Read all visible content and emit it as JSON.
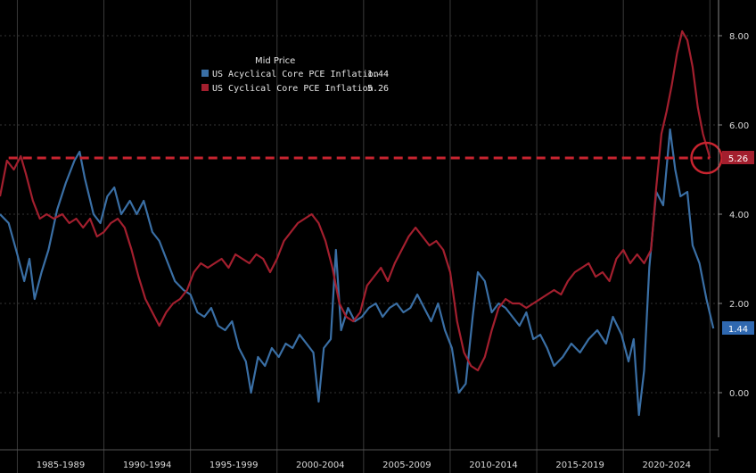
{
  "chart_data": {
    "type": "line",
    "title": "",
    "xlabel": "",
    "ylabel": "",
    "xlim": [
      1984,
      2025.5
    ],
    "ylim": [
      -1.0,
      8.8
    ],
    "y_ticks": [
      0,
      2,
      4,
      6,
      8
    ],
    "y_tick_labels": [
      "0.00",
      "2.00",
      "4.00",
      "6.00",
      "8.00"
    ],
    "x_periods": [
      "1985-1989",
      "1990-1994",
      "1995-1999",
      "2000-2004",
      "2005-2009",
      "2010-2014",
      "2015-2019",
      "2020-2024"
    ],
    "grid": true,
    "legend_title": "Mid Price",
    "legend_position": "top-left",
    "series": [
      {
        "name": "US Acyclical Core PCE Inflation",
        "last_label": "1.44",
        "color": "#3a6fa5",
        "points": [
          [
            1984.0,
            4.0
          ],
          [
            1984.5,
            3.8
          ],
          [
            1985.0,
            3.1
          ],
          [
            1985.4,
            2.5
          ],
          [
            1985.7,
            3.0
          ],
          [
            1986.0,
            2.1
          ],
          [
            1986.4,
            2.7
          ],
          [
            1986.8,
            3.2
          ],
          [
            1987.3,
            4.1
          ],
          [
            1987.8,
            4.7
          ],
          [
            1988.3,
            5.2
          ],
          [
            1988.6,
            5.4
          ],
          [
            1988.9,
            4.8
          ],
          [
            1989.4,
            4.0
          ],
          [
            1989.8,
            3.8
          ],
          [
            1990.2,
            4.4
          ],
          [
            1990.6,
            4.6
          ],
          [
            1991.0,
            4.0
          ],
          [
            1991.5,
            4.3
          ],
          [
            1991.9,
            4.0
          ],
          [
            1992.3,
            4.3
          ],
          [
            1992.8,
            3.6
          ],
          [
            1993.2,
            3.4
          ],
          [
            1993.7,
            2.9
          ],
          [
            1994.1,
            2.5
          ],
          [
            1994.6,
            2.3
          ],
          [
            1995.0,
            2.2
          ],
          [
            1995.4,
            1.8
          ],
          [
            1995.8,
            1.7
          ],
          [
            1996.2,
            1.9
          ],
          [
            1996.6,
            1.5
          ],
          [
            1997.0,
            1.4
          ],
          [
            1997.4,
            1.6
          ],
          [
            1997.8,
            1.0
          ],
          [
            1998.2,
            0.7
          ],
          [
            1998.5,
            0.0
          ],
          [
            1998.9,
            0.8
          ],
          [
            1999.3,
            0.6
          ],
          [
            1999.7,
            1.0
          ],
          [
            2000.1,
            0.8
          ],
          [
            2000.5,
            1.1
          ],
          [
            2000.9,
            1.0
          ],
          [
            2001.3,
            1.3
          ],
          [
            2001.7,
            1.1
          ],
          [
            2002.1,
            0.9
          ],
          [
            2002.4,
            -0.2
          ],
          [
            2002.7,
            1.0
          ],
          [
            2003.1,
            1.2
          ],
          [
            2003.4,
            3.2
          ],
          [
            2003.7,
            1.4
          ],
          [
            2004.1,
            1.9
          ],
          [
            2004.5,
            1.6
          ],
          [
            2004.9,
            1.7
          ],
          [
            2005.3,
            1.9
          ],
          [
            2005.7,
            2.0
          ],
          [
            2006.1,
            1.7
          ],
          [
            2006.5,
            1.9
          ],
          [
            2006.9,
            2.0
          ],
          [
            2007.3,
            1.8
          ],
          [
            2007.7,
            1.9
          ],
          [
            2008.1,
            2.2
          ],
          [
            2008.5,
            1.9
          ],
          [
            2008.9,
            1.6
          ],
          [
            2009.3,
            2.0
          ],
          [
            2009.7,
            1.4
          ],
          [
            2010.1,
            1.0
          ],
          [
            2010.5,
            0.0
          ],
          [
            2010.9,
            0.2
          ],
          [
            2011.3,
            1.7
          ],
          [
            2011.6,
            2.7
          ],
          [
            2012.0,
            2.5
          ],
          [
            2012.4,
            1.8
          ],
          [
            2012.8,
            2.0
          ],
          [
            2013.2,
            1.9
          ],
          [
            2013.6,
            1.7
          ],
          [
            2014.0,
            1.5
          ],
          [
            2014.4,
            1.8
          ],
          [
            2014.8,
            1.2
          ],
          [
            2015.2,
            1.3
          ],
          [
            2015.6,
            1.0
          ],
          [
            2016.0,
            0.6
          ],
          [
            2016.5,
            0.8
          ],
          [
            2017.0,
            1.1
          ],
          [
            2017.5,
            0.9
          ],
          [
            2018.0,
            1.2
          ],
          [
            2018.5,
            1.4
          ],
          [
            2019.0,
            1.1
          ],
          [
            2019.4,
            1.7
          ],
          [
            2019.9,
            1.3
          ],
          [
            2020.3,
            0.7
          ],
          [
            2020.6,
            1.2
          ],
          [
            2020.9,
            -0.5
          ],
          [
            2021.2,
            0.5
          ],
          [
            2021.5,
            2.8
          ],
          [
            2021.9,
            4.5
          ],
          [
            2022.3,
            4.2
          ],
          [
            2022.7,
            5.9
          ],
          [
            2023.0,
            5.0
          ],
          [
            2023.3,
            4.4
          ],
          [
            2023.7,
            4.5
          ],
          [
            2024.0,
            3.3
          ],
          [
            2024.4,
            2.9
          ],
          [
            2024.8,
            2.1
          ],
          [
            2025.2,
            1.44
          ]
        ]
      },
      {
        "name": "US Cyclical Core PCE Inflation",
        "last_label": "5.26",
        "color": "#a31f2e",
        "points": [
          [
            1984.0,
            4.4
          ],
          [
            1984.4,
            5.2
          ],
          [
            1984.8,
            5.0
          ],
          [
            1985.2,
            5.3
          ],
          [
            1985.5,
            4.9
          ],
          [
            1985.9,
            4.3
          ],
          [
            1986.3,
            3.9
          ],
          [
            1986.7,
            4.0
          ],
          [
            1987.1,
            3.9
          ],
          [
            1987.6,
            4.0
          ],
          [
            1988.0,
            3.8
          ],
          [
            1988.4,
            3.9
          ],
          [
            1988.8,
            3.7
          ],
          [
            1989.2,
            3.9
          ],
          [
            1989.6,
            3.5
          ],
          [
            1990.0,
            3.6
          ],
          [
            1990.4,
            3.8
          ],
          [
            1990.8,
            3.9
          ],
          [
            1991.2,
            3.7
          ],
          [
            1991.6,
            3.2
          ],
          [
            1992.0,
            2.6
          ],
          [
            1992.4,
            2.1
          ],
          [
            1992.8,
            1.8
          ],
          [
            1993.2,
            1.5
          ],
          [
            1993.6,
            1.8
          ],
          [
            1994.0,
            2.0
          ],
          [
            1994.4,
            2.1
          ],
          [
            1994.8,
            2.3
          ],
          [
            1995.2,
            2.7
          ],
          [
            1995.6,
            2.9
          ],
          [
            1996.0,
            2.8
          ],
          [
            1996.4,
            2.9
          ],
          [
            1996.8,
            3.0
          ],
          [
            1997.2,
            2.8
          ],
          [
            1997.6,
            3.1
          ],
          [
            1998.0,
            3.0
          ],
          [
            1998.4,
            2.9
          ],
          [
            1998.8,
            3.1
          ],
          [
            1999.2,
            3.0
          ],
          [
            1999.6,
            2.7
          ],
          [
            2000.0,
            3.0
          ],
          [
            2000.4,
            3.4
          ],
          [
            2000.8,
            3.6
          ],
          [
            2001.2,
            3.8
          ],
          [
            2001.6,
            3.9
          ],
          [
            2002.0,
            4.0
          ],
          [
            2002.4,
            3.8
          ],
          [
            2002.8,
            3.4
          ],
          [
            2003.2,
            2.8
          ],
          [
            2003.6,
            2.0
          ],
          [
            2004.0,
            1.7
          ],
          [
            2004.4,
            1.6
          ],
          [
            2004.8,
            1.8
          ],
          [
            2005.2,
            2.4
          ],
          [
            2005.6,
            2.6
          ],
          [
            2006.0,
            2.8
          ],
          [
            2006.4,
            2.5
          ],
          [
            2006.8,
            2.9
          ],
          [
            2007.2,
            3.2
          ],
          [
            2007.6,
            3.5
          ],
          [
            2008.0,
            3.7
          ],
          [
            2008.4,
            3.5
          ],
          [
            2008.8,
            3.3
          ],
          [
            2009.2,
            3.4
          ],
          [
            2009.6,
            3.2
          ],
          [
            2010.0,
            2.7
          ],
          [
            2010.4,
            1.6
          ],
          [
            2010.8,
            0.9
          ],
          [
            2011.2,
            0.6
          ],
          [
            2011.6,
            0.5
          ],
          [
            2012.0,
            0.8
          ],
          [
            2012.4,
            1.4
          ],
          [
            2012.8,
            1.9
          ],
          [
            2013.2,
            2.1
          ],
          [
            2013.6,
            2.0
          ],
          [
            2014.0,
            2.0
          ],
          [
            2014.4,
            1.9
          ],
          [
            2014.8,
            2.0
          ],
          [
            2015.2,
            2.1
          ],
          [
            2015.6,
            2.2
          ],
          [
            2016.0,
            2.3
          ],
          [
            2016.4,
            2.2
          ],
          [
            2016.8,
            2.5
          ],
          [
            2017.2,
            2.7
          ],
          [
            2017.6,
            2.8
          ],
          [
            2018.0,
            2.9
          ],
          [
            2018.4,
            2.6
          ],
          [
            2018.8,
            2.7
          ],
          [
            2019.2,
            2.5
          ],
          [
            2019.6,
            3.0
          ],
          [
            2020.0,
            3.2
          ],
          [
            2020.4,
            2.9
          ],
          [
            2020.8,
            3.1
          ],
          [
            2021.2,
            2.9
          ],
          [
            2021.6,
            3.2
          ],
          [
            2021.9,
            4.6
          ],
          [
            2022.2,
            5.8
          ],
          [
            2022.5,
            6.3
          ],
          [
            2022.8,
            6.9
          ],
          [
            2023.1,
            7.6
          ],
          [
            2023.4,
            8.1
          ],
          [
            2023.7,
            7.9
          ],
          [
            2024.0,
            7.3
          ],
          [
            2024.3,
            6.4
          ],
          [
            2024.6,
            5.8
          ],
          [
            2025.0,
            5.26
          ]
        ]
      }
    ],
    "reference_line": {
      "value": 5.26,
      "style": "dashed",
      "color": "#c8242f",
      "from_x": 1984.5
    },
    "annotation": {
      "type": "circle",
      "x": 2024.6,
      "y": 5.26,
      "color": "#c8242f"
    }
  }
}
